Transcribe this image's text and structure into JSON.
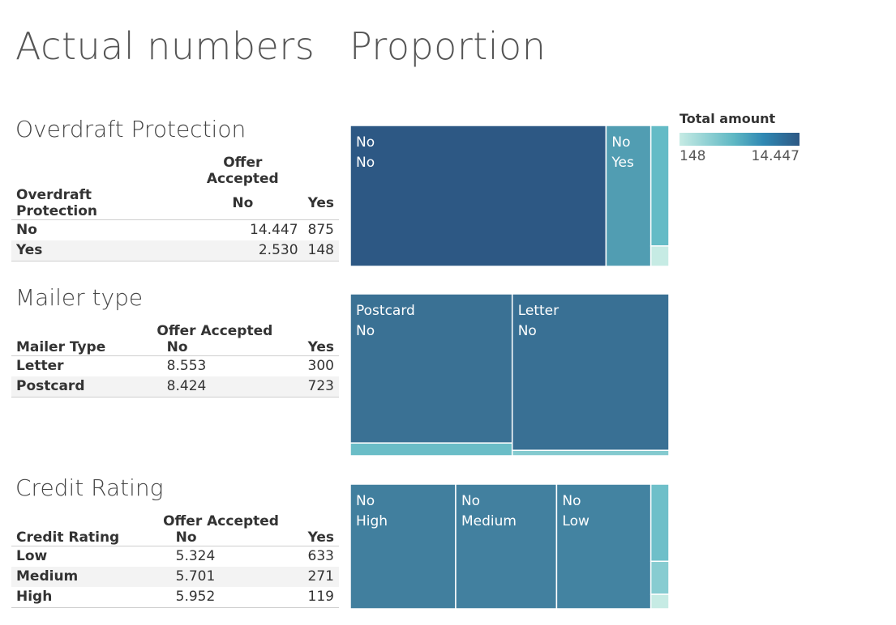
{
  "titles": {
    "left": "Actual numbers",
    "right": "Proportion"
  },
  "legend": {
    "title": "Total amount",
    "min_label": "148",
    "max_label": "14.447",
    "color_low": "#c6ebe4",
    "color_high": "#2d5884"
  },
  "sections": [
    {
      "title": "Overdraft Protection",
      "column_group": "Offer Accepted",
      "row_header": "Overdraft Protection",
      "columns": [
        "No",
        "Yes"
      ],
      "rows": [
        {
          "label": "No",
          "no": "14.447",
          "yes": "875"
        },
        {
          "label": "Yes",
          "no": "2.530",
          "yes": "148"
        }
      ]
    },
    {
      "title": "Mailer type",
      "column_group": "Offer Accepted",
      "row_header": "Mailer Type",
      "columns": [
        "No",
        "Yes"
      ],
      "rows": [
        {
          "label": "Letter",
          "no": "8.553",
          "yes": "300"
        },
        {
          "label": "Postcard",
          "no": "8.424",
          "yes": "723"
        }
      ]
    },
    {
      "title": "Credit Rating",
      "column_group": "Offer Accepted",
      "row_header": "Credit Rating",
      "columns": [
        "No",
        "Yes"
      ],
      "rows": [
        {
          "label": "Low",
          "no": "5.324",
          "yes": "633"
        },
        {
          "label": "Medium",
          "no": "5.701",
          "yes": "271"
        },
        {
          "label": "High",
          "no": "5.952",
          "yes": "119"
        }
      ]
    }
  ],
  "chart_data": [
    {
      "type": "treemap",
      "dimension": "Overdraft Protection",
      "cells": [
        {
          "offer": "No",
          "category": "No",
          "value": 14447,
          "labels": [
            "No",
            "No"
          ]
        },
        {
          "offer": "No",
          "category": "Yes",
          "value": 2530,
          "labels": [
            "No",
            "Yes"
          ]
        },
        {
          "offer": "Yes",
          "category": "No",
          "value": 875,
          "labels": []
        },
        {
          "offer": "Yes",
          "category": "Yes",
          "value": 148,
          "labels": []
        }
      ]
    },
    {
      "type": "treemap",
      "dimension": "Mailer Type",
      "cells": [
        {
          "offer": "No",
          "category": "Postcard",
          "value": 8424,
          "labels": [
            "Postcard",
            "No"
          ]
        },
        {
          "offer": "Yes",
          "category": "Postcard",
          "value": 723,
          "labels": []
        },
        {
          "offer": "No",
          "category": "Letter",
          "value": 8553,
          "labels": [
            "Letter",
            "No"
          ]
        },
        {
          "offer": "Yes",
          "category": "Letter",
          "value": 300,
          "labels": []
        }
      ]
    },
    {
      "type": "treemap",
      "dimension": "Credit Rating",
      "cells": [
        {
          "offer": "No",
          "category": "High",
          "value": 5952,
          "labels": [
            "No",
            "High"
          ]
        },
        {
          "offer": "No",
          "category": "Medium",
          "value": 5701,
          "labels": [
            "No",
            "Medium"
          ]
        },
        {
          "offer": "No",
          "category": "Low",
          "value": 5324,
          "labels": [
            "No",
            "Low"
          ]
        },
        {
          "offer": "Yes",
          "category": "Low",
          "value": 633,
          "labels": []
        },
        {
          "offer": "Yes",
          "category": "Medium",
          "value": 271,
          "labels": []
        },
        {
          "offer": "Yes",
          "category": "High",
          "value": 119,
          "labels": []
        }
      ]
    }
  ]
}
